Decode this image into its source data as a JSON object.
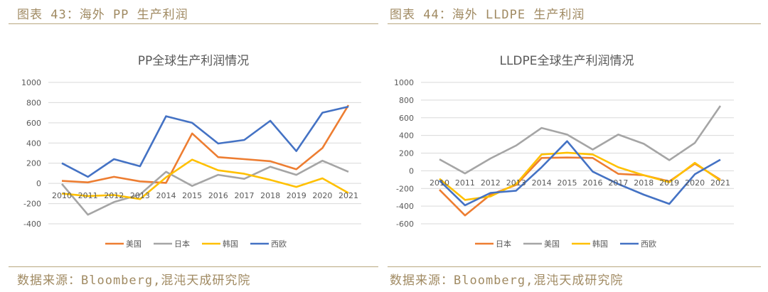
{
  "panels": [
    {
      "header": "图表 43：海外 PP 生产利润",
      "source": "数据来源：Bloomberg,混沌天成研究院"
    },
    {
      "header": "图表 44：海外 LLDPE 生产利润",
      "source": "数据来源：Bloomberg,混沌天成研究院"
    }
  ],
  "chart_data": [
    {
      "type": "line",
      "title": "PP全球生产利润情况",
      "xlabel": "",
      "ylabel": "",
      "categories": [
        "2010",
        "2011",
        "2012",
        "2013",
        "2014",
        "2015",
        "2016",
        "2017",
        "2018",
        "2019",
        "2020",
        "2021"
      ],
      "ylim": [
        -400,
        1000
      ],
      "yticks": [
        1000,
        800,
        600,
        400,
        200,
        0,
        -200,
        -400
      ],
      "grid": true,
      "legend": "bottom",
      "series": [
        {
          "name": "美国",
          "color": "#ed7d31",
          "values": [
            25,
            10,
            65,
            20,
            5,
            495,
            260,
            240,
            220,
            140,
            350,
            775
          ]
        },
        {
          "name": "日本",
          "color": "#a5a5a5",
          "values": [
            -5,
            -310,
            -185,
            -110,
            115,
            -25,
            85,
            45,
            165,
            85,
            225,
            115
          ]
        },
        {
          "name": "韩国",
          "color": "#ffc000",
          "values": [
            -100,
            -125,
            -115,
            -155,
            60,
            235,
            130,
            95,
            35,
            -35,
            50,
            -95
          ]
        },
        {
          "name": "西欧",
          "color": "#4472c4",
          "values": [
            200,
            65,
            240,
            170,
            665,
            600,
            395,
            430,
            620,
            320,
            700,
            760
          ]
        }
      ]
    },
    {
      "type": "line",
      "title": "LLDPE全球生产利润情况",
      "xlabel": "",
      "ylabel": "",
      "categories": [
        "2010",
        "2011",
        "2012",
        "2013",
        "2014",
        "2015",
        "2016",
        "2017",
        "2018",
        "2019",
        "2020",
        "2021"
      ],
      "ylim": [
        -600,
        1000
      ],
      "yticks": [
        1000,
        800,
        600,
        400,
        200,
        0,
        -200,
        -400,
        -600
      ],
      "grid": true,
      "legend": "bottom",
      "series": [
        {
          "name": "日本",
          "color": "#ed7d31",
          "values": [
            -215,
            -505,
            -270,
            -160,
            145,
            150,
            145,
            -35,
            -50,
            -120,
            80,
            -100
          ]
        },
        {
          "name": "美国",
          "color": "#a5a5a5",
          "values": [
            130,
            -30,
            140,
            285,
            485,
            410,
            240,
            410,
            305,
            120,
            315,
            735
          ]
        },
        {
          "name": "韩国",
          "color": "#ffc000",
          "values": [
            -90,
            -330,
            -290,
            -150,
            185,
            205,
            185,
            40,
            -50,
            -130,
            90,
            -110
          ]
        },
        {
          "name": "西欧",
          "color": "#4472c4",
          "values": [
            -110,
            -390,
            -250,
            -225,
            40,
            335,
            -10,
            -150,
            -270,
            -375,
            -40,
            125
          ]
        }
      ]
    }
  ]
}
